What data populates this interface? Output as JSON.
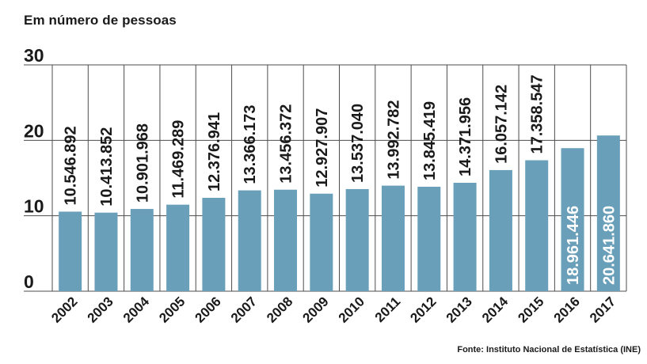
{
  "header": {
    "subtitle": "Em número de pessoas"
  },
  "footer": {
    "source": "Fonte: Instituto Nacional de Estatística (INE)"
  },
  "colors": {
    "bar": "#6a9fba",
    "grid": "#4d4d4d",
    "label_dark": "#1a1a1a",
    "label_light": "#ffffff"
  },
  "chart_data": {
    "type": "bar",
    "categories": [
      "2002",
      "2003",
      "2004",
      "2005",
      "2006",
      "2007",
      "2008",
      "2009",
      "2010",
      "2011",
      "2012",
      "2013",
      "2014",
      "2015",
      "2016",
      "2017"
    ],
    "values": [
      10546892,
      10413852,
      10901968,
      11469289,
      12376941,
      13366173,
      13456372,
      12927907,
      13537040,
      13992782,
      13845419,
      14371956,
      16057142,
      17358547,
      18961446,
      20641860
    ],
    "value_labels": [
      "10.546.892",
      "10.413.852",
      "10.901.968",
      "11.469.289",
      "12.376.941",
      "13.366.173",
      "13.456.372",
      "12.927.907",
      "13.537.040",
      "13.992.782",
      "13.845.419",
      "14.371.956",
      "16.057.142",
      "17.358.547",
      "18.961.446",
      "20.641.860"
    ],
    "label_inside_bar": [
      false,
      false,
      false,
      false,
      false,
      false,
      false,
      false,
      false,
      false,
      false,
      false,
      false,
      false,
      true,
      true
    ],
    "y_unit": 1000000,
    "ylim": [
      0,
      30
    ],
    "yticks": [
      "0",
      "10",
      "20",
      "30"
    ],
    "grid": true,
    "legend": "none"
  }
}
